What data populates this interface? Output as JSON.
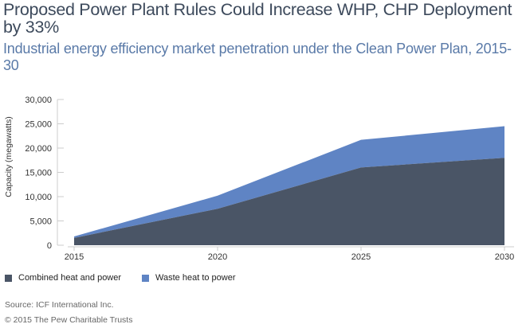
{
  "title": "Proposed Power Plant Rules Could Increase WHP, CHP Deployment by 33%",
  "subtitle": "Industrial energy efficiency market penetration under the Clean Power Plan, 2015-30",
  "source": "Source: ICF International Inc.",
  "copyright": "© 2015 The Pew Charitable Trusts",
  "colors": {
    "chp": "#4a5566",
    "whp": "#5f84c4",
    "axis": "#cccccc"
  },
  "chart_data": {
    "type": "area",
    "stacked": true,
    "x": [
      2015,
      2020,
      2025,
      2030
    ],
    "series": [
      {
        "name": "Combined heat and power",
        "values": [
          1500,
          7500,
          16000,
          18000
        ]
      },
      {
        "name": "Waste heat to power",
        "values": [
          300,
          2700,
          5700,
          6500
        ]
      }
    ],
    "ylabel": "Capacity (megawatts)",
    "xlabel": "",
    "ylim": [
      0,
      30000
    ],
    "yticks": [
      "0",
      "5,000",
      "10,000",
      "15,000",
      "20,000",
      "25,000",
      "30,000"
    ],
    "xticks": [
      "2015",
      "2020",
      "2025",
      "2030"
    ],
    "legend_position": "bottom-left",
    "grid": false
  }
}
